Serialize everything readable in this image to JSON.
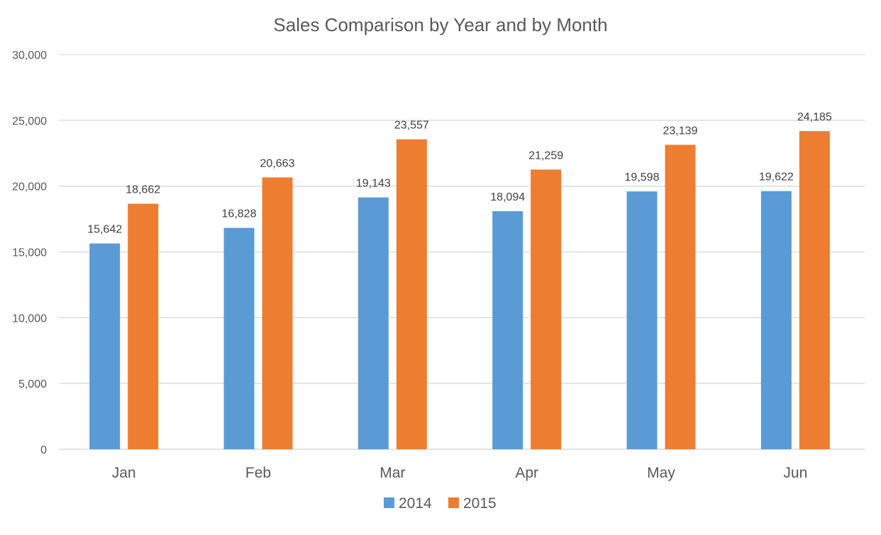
{
  "chart_data": {
    "type": "bar",
    "title": "Sales Comparison by Year and by Month",
    "xlabel": "",
    "ylabel": "",
    "categories": [
      "Jan",
      "Feb",
      "Mar",
      "Apr",
      "May",
      "Jun"
    ],
    "series": [
      {
        "name": "2014",
        "color": "#5B9BD5",
        "values": [
          15642,
          16828,
          19143,
          18094,
          19598,
          19622
        ],
        "labels": [
          "15,642",
          "16,828",
          "19,143",
          "18,094",
          "19,598",
          "19,622"
        ]
      },
      {
        "name": "2015",
        "color": "#ED7D31",
        "values": [
          18662,
          20663,
          23557,
          21259,
          23139,
          24185
        ],
        "labels": [
          "18,662",
          "20,663",
          "23,557",
          "21,259",
          "23,139",
          "24,185"
        ]
      }
    ],
    "ylim": [
      0,
      30000
    ],
    "yticks": [
      0,
      5000,
      10000,
      15000,
      20000,
      25000,
      30000
    ],
    "ytick_labels": [
      "0",
      "5,000",
      "10,000",
      "15,000",
      "20,000",
      "25,000",
      "30,000"
    ],
    "grid": true,
    "legend_position": "bottom"
  }
}
